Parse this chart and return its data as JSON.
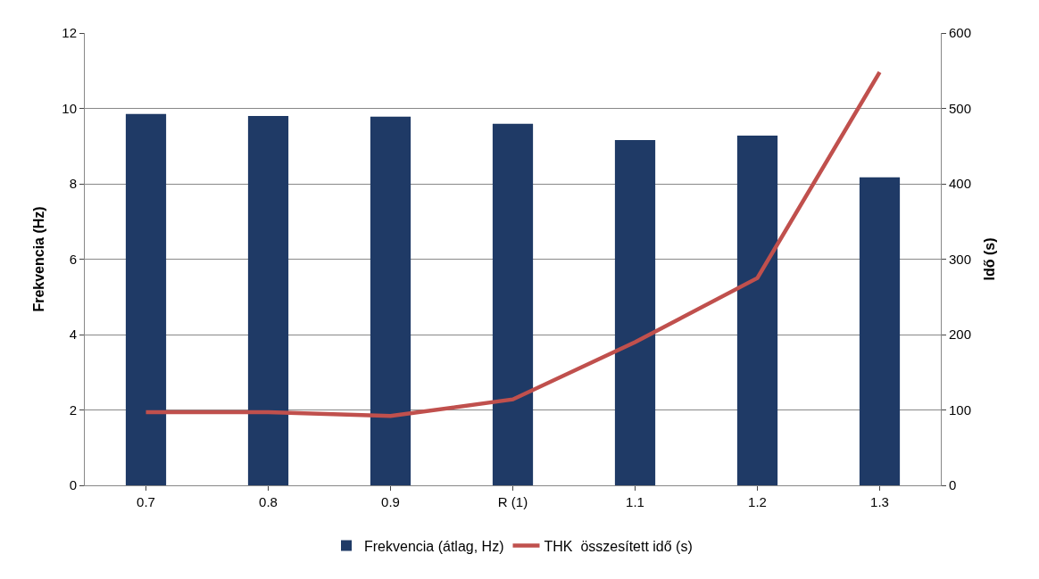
{
  "chart_data": {
    "type": "bar",
    "ylabel": "Frekvencia (Hz)",
    "y2label": "Idő (s)",
    "categories": [
      "0.7",
      "0.8",
      "0.9",
      "R (1)",
      "1.1",
      "1.2",
      "1.3"
    ],
    "series": [
      {
        "name": "Frekvencia (átlag, Hz)",
        "color": "#1f3a66",
        "values": [
          9.85,
          9.8,
          9.78,
          9.59,
          9.16,
          9.28,
          8.17
        ]
      },
      {
        "name": "THK  összesített idő (s)",
        "color": "#c0504d",
        "type": "line",
        "axis": "y2",
        "values": [
          97,
          97,
          92,
          114,
          190,
          275,
          548
        ]
      }
    ],
    "ylim": [
      0,
      12
    ],
    "yticks": [
      0,
      2,
      4,
      6,
      8,
      10,
      12
    ],
    "y2lim": [
      0,
      600
    ],
    "y2ticks": [
      0,
      100,
      200,
      300,
      400,
      500,
      600
    ],
    "grid": "y",
    "legend": "bottom",
    "marker": "none",
    "line_style": "solid"
  }
}
